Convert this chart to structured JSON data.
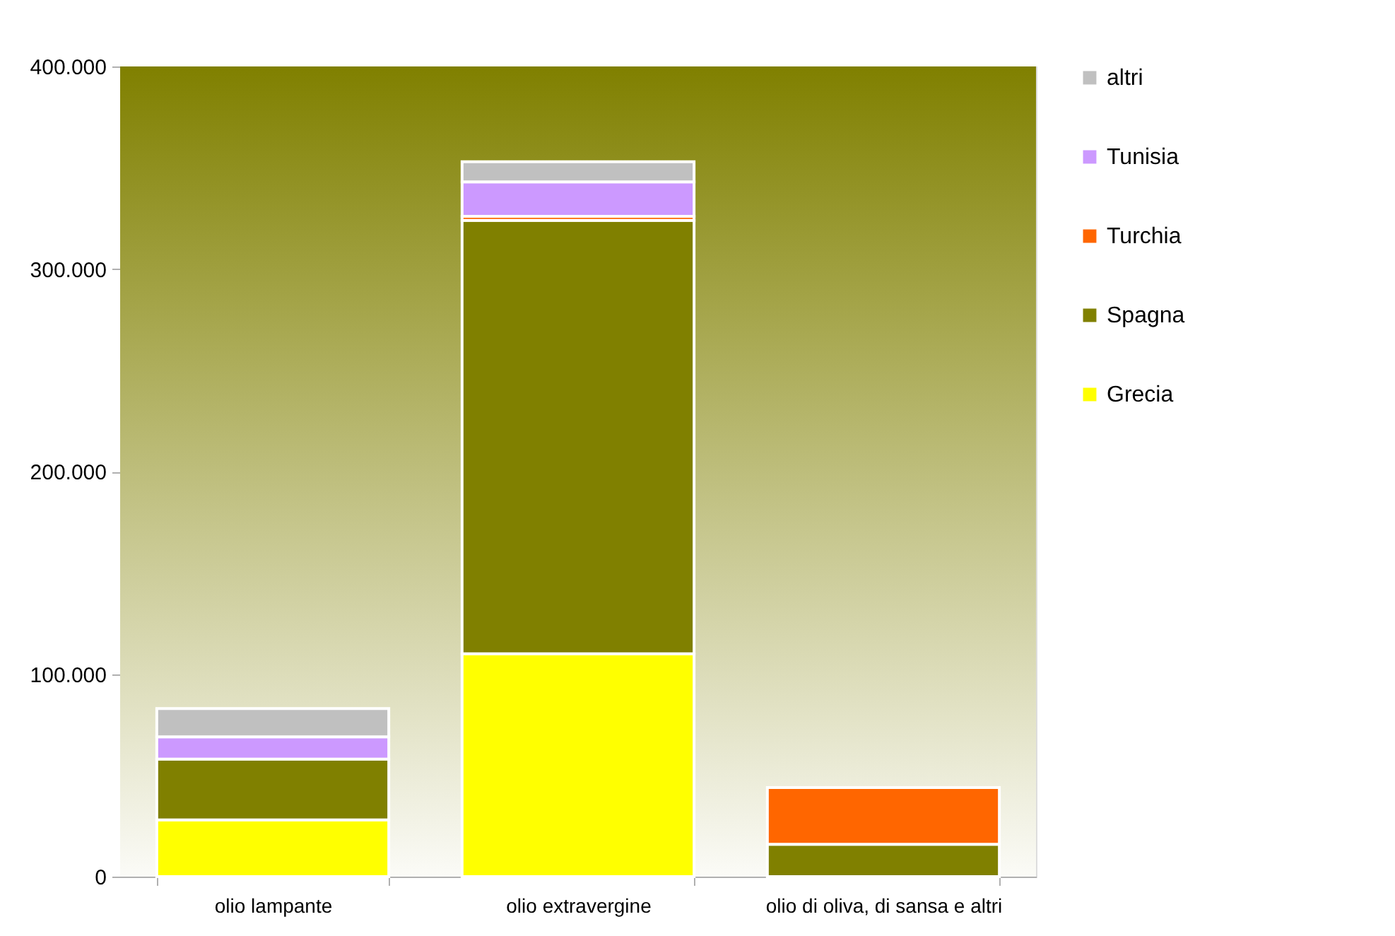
{
  "chart_data": {
    "type": "bar",
    "stacked": true,
    "categories": [
      "olio lampante",
      "olio extravergine",
      "olio di oliva, di sansa e altri"
    ],
    "series": [
      {
        "name": "Grecia",
        "color": "#ffff00",
        "values": [
          28000,
          110000,
          0
        ]
      },
      {
        "name": "Spagna",
        "color": "#808000",
        "values": [
          30000,
          214000,
          16000
        ]
      },
      {
        "name": "Turchia",
        "color": "#ff6600",
        "values": [
          0,
          2000,
          28000
        ]
      },
      {
        "name": "Tunisia",
        "color": "#cc99ff",
        "values": [
          11000,
          17000,
          0
        ]
      },
      {
        "name": "altri",
        "color": "#c0c0c0",
        "values": [
          14000,
          10000,
          0
        ]
      }
    ],
    "ylim": [
      0,
      400000
    ],
    "yticks": [
      {
        "value": 0,
        "label": "0"
      },
      {
        "value": 100000,
        "label": "100.000"
      },
      {
        "value": 200000,
        "label": "200.000"
      },
      {
        "value": 300000,
        "label": "300.000"
      },
      {
        "value": 400000,
        "label": "400.000"
      }
    ],
    "legend": "right"
  }
}
